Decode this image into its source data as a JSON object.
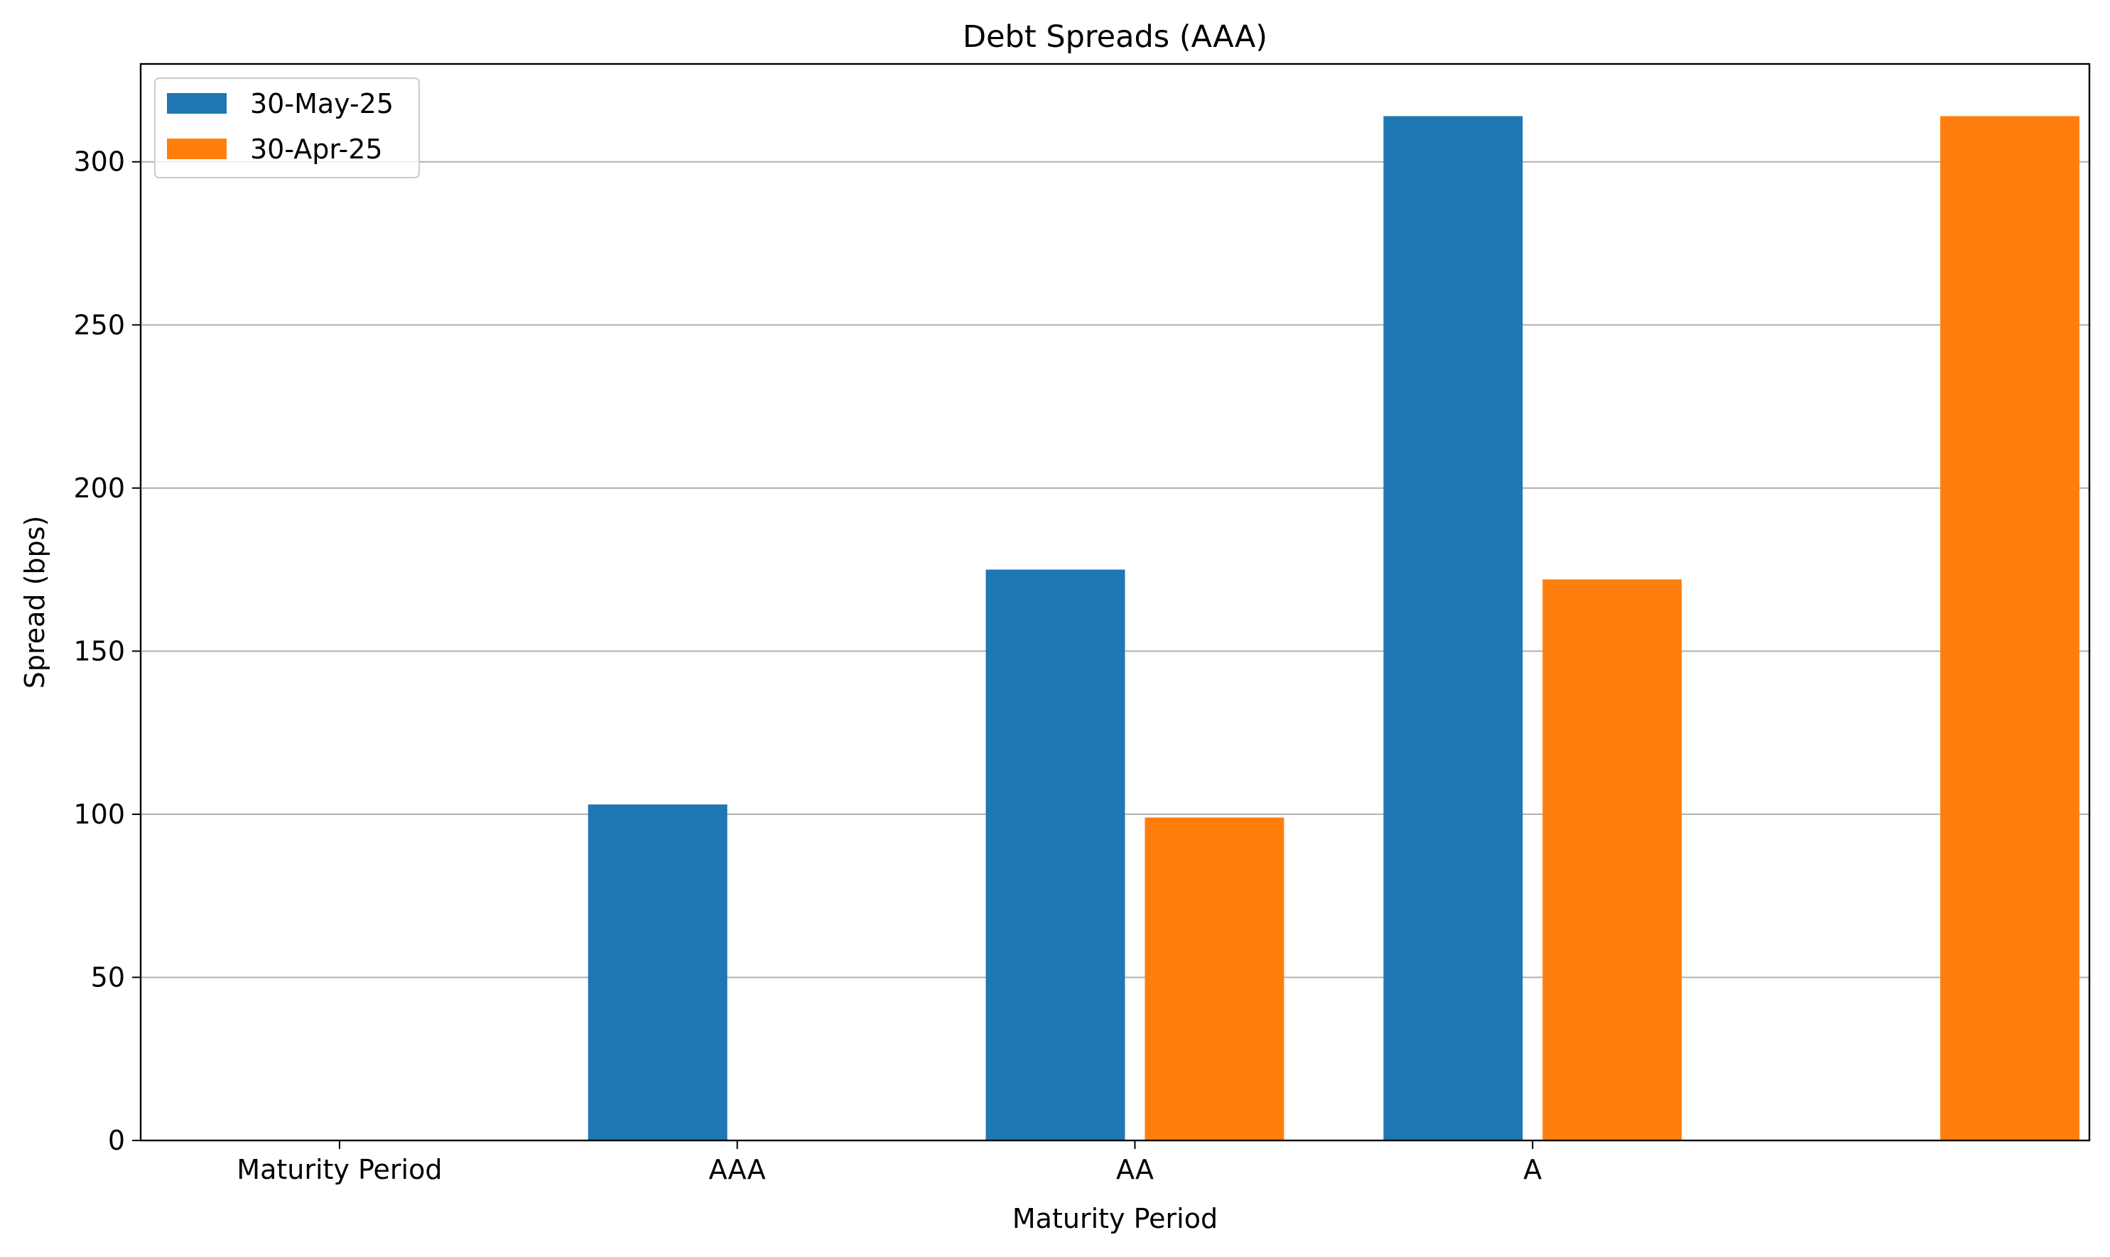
{
  "chart_data": {
    "type": "bar",
    "title": "Debt Spreads (AAA)",
    "xlabel": "Maturity Period",
    "ylabel": "Spread (bps)",
    "x_positions": [
      0,
      1,
      2,
      3,
      4
    ],
    "categories": [
      "Maturity Period",
      "AAA",
      "AA",
      "A",
      ""
    ],
    "xlim": [
      -0.5,
      4.4
    ],
    "ylim": [
      0,
      330
    ],
    "yticks": [
      0,
      50,
      100,
      150,
      200,
      250,
      300
    ],
    "grid": "y",
    "legend_position": "top-left",
    "bar_width": 0.35,
    "series": [
      {
        "name": "30-May-25",
        "color": "#1f77b4",
        "offset": -0.2,
        "values": [
          null,
          103,
          175,
          314,
          null
        ]
      },
      {
        "name": "30-Apr-25",
        "color": "#ff7f0e",
        "offset": 0.2,
        "values": [
          null,
          null,
          99,
          172,
          314
        ]
      }
    ]
  }
}
